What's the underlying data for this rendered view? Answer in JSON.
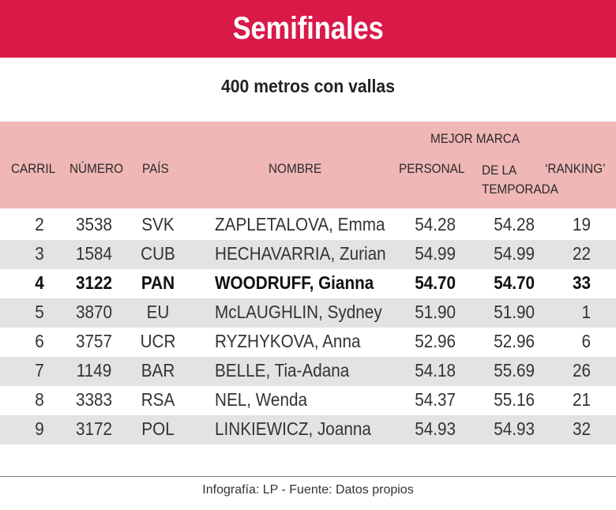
{
  "banner": {
    "title": "Semifinales",
    "color": "#d91a49"
  },
  "subtitle": "400 metros con vallas",
  "table": {
    "headers": {
      "carril": "CARRIL",
      "numero": "NÚMERO",
      "pais": "PAÍS",
      "nombre": "NOMBRE",
      "mejor_marca": "MEJOR MARCA",
      "personal": "PERSONAL",
      "de_la": "DE LA",
      "temporada": "TEMPORADA",
      "ranking": "‘RANKING’"
    },
    "header_color": "#efb7b5",
    "rows": [
      {
        "carril": "2",
        "numero": "3538",
        "pais": "SVK",
        "nombre": "ZAPLETALOVA, Emma",
        "personal": "54.28",
        "temporada": "54.28",
        "ranking": "19",
        "highlight": false
      },
      {
        "carril": "3",
        "numero": "1584",
        "pais": "CUB",
        "nombre": "HECHAVARRIA, Zurian",
        "personal": "54.99",
        "temporada": "54.99",
        "ranking": "22",
        "highlight": false
      },
      {
        "carril": "4",
        "numero": "3122",
        "pais": "PAN",
        "nombre": "WOODRUFF, Gianna",
        "personal": "54.70",
        "temporada": "54.70",
        "ranking": "33",
        "highlight": true
      },
      {
        "carril": "5",
        "numero": "3870",
        "pais": "EU",
        "nombre": "McLAUGHLIN, Sydney",
        "personal": "51.90",
        "temporada": "51.90",
        "ranking": "1",
        "highlight": false
      },
      {
        "carril": "6",
        "numero": "3757",
        "pais": "UCR",
        "nombre": "RYZHYKOVA, Anna",
        "personal": "52.96",
        "temporada": "52.96",
        "ranking": "6",
        "highlight": false
      },
      {
        "carril": "7",
        "numero": "1149",
        "pais": "BAR",
        "nombre": "BELLE, Tia-Adana",
        "personal": "54.18",
        "temporada": "55.69",
        "ranking": "26",
        "highlight": false
      },
      {
        "carril": "8",
        "numero": "3383",
        "pais": "RSA",
        "nombre": "NEL, Wenda",
        "personal": "54.37",
        "temporada": "55.16",
        "ranking": "21",
        "highlight": false
      },
      {
        "carril": "9",
        "numero": "3172",
        "pais": "POL",
        "nombre": "LINKIEWICZ, Joanna",
        "personal": "54.93",
        "temporada": "54.93",
        "ranking": "32",
        "highlight": false
      }
    ]
  },
  "footer": "Infografía: LP - Fuente: Datos propios"
}
